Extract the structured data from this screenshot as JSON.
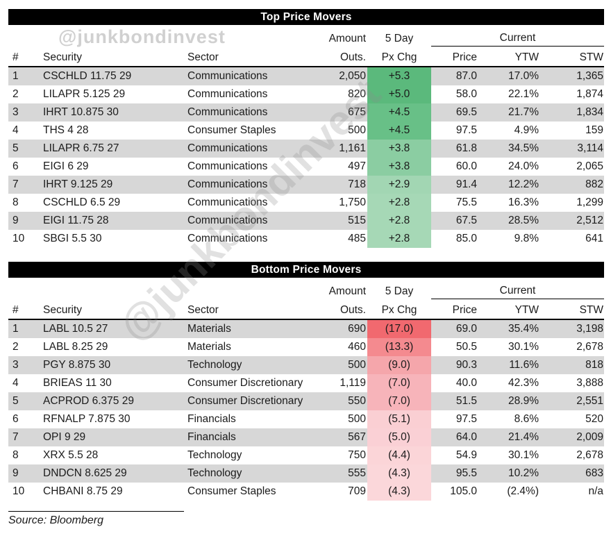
{
  "watermarks": {
    "top_handle": "@junkbondinvest",
    "diagonal_handle": "@junkbondinvest"
  },
  "footer": {
    "source": "Source: Bloomberg"
  },
  "colors": {
    "title_bar_bg": "#000000",
    "title_bar_text": "#ffffff",
    "row_stripe": "#d7d7d7",
    "gain_strong": "#5bb97c",
    "gain_weak": "#a6d8b6",
    "loss_strong": "#f1696f",
    "loss_weak": "#fbd7da"
  },
  "chart_data": [
    {
      "type": "table",
      "title": "Top Price Movers",
      "column_headers": {
        "group_amount": "Amount",
        "group_chg": "5 Day",
        "group_current": "Current",
        "num": "#",
        "security": "Security",
        "sector": "Sector",
        "amount": "Outs.",
        "chg": "Px Chg",
        "price": "Price",
        "ytw": "YTW",
        "stw": "STW"
      },
      "rows": [
        {
          "num": "1",
          "security": "CSCHLD 11.75 29",
          "sector": "Communications",
          "amount": "2,050",
          "chg": "+5.3",
          "chg_bg": "#5bb97c",
          "price": "87.0",
          "ytw": "17.0%",
          "stw": "1,365"
        },
        {
          "num": "2",
          "security": "LILAPR 5.125 29",
          "sector": "Communications",
          "amount": "820",
          "chg": "+5.0",
          "chg_bg": "#5bb97c",
          "price": "58.0",
          "ytw": "22.1%",
          "stw": "1,874"
        },
        {
          "num": "3",
          "security": "IHRT 10.875 30",
          "sector": "Communications",
          "amount": "675",
          "chg": "+4.5",
          "chg_bg": "#68c087",
          "price": "69.5",
          "ytw": "21.7%",
          "stw": "1,834"
        },
        {
          "num": "4",
          "security": "THS 4 28",
          "sector": "Consumer Staples",
          "amount": "500",
          "chg": "+4.5",
          "chg_bg": "#68c087",
          "price": "97.5",
          "ytw": "4.9%",
          "stw": "159"
        },
        {
          "num": "5",
          "security": "LILAPR 6.75 27",
          "sector": "Communications",
          "amount": "1,161",
          "chg": "+3.8",
          "chg_bg": "#8bcda2",
          "price": "61.8",
          "ytw": "34.5%",
          "stw": "3,114"
        },
        {
          "num": "6",
          "security": "EIGI 6 29",
          "sector": "Communications",
          "amount": "497",
          "chg": "+3.8",
          "chg_bg": "#8bcda2",
          "price": "60.0",
          "ytw": "24.0%",
          "stw": "2,065"
        },
        {
          "num": "7",
          "security": "IHRT 9.125 29",
          "sector": "Communications",
          "amount": "718",
          "chg": "+2.9",
          "chg_bg": "#a2d6b3",
          "price": "91.4",
          "ytw": "12.2%",
          "stw": "882"
        },
        {
          "num": "8",
          "security": "CSCHLD 6.5 29",
          "sector": "Communications",
          "amount": "1,750",
          "chg": "+2.8",
          "chg_bg": "#a6d8b6",
          "price": "75.5",
          "ytw": "16.3%",
          "stw": "1,299"
        },
        {
          "num": "9",
          "security": "EIGI 11.75 28",
          "sector": "Communications",
          "amount": "515",
          "chg": "+2.8",
          "chg_bg": "#a6d8b6",
          "price": "67.5",
          "ytw": "28.5%",
          "stw": "2,512"
        },
        {
          "num": "10",
          "security": "SBGI 5.5 30",
          "sector": "Communications",
          "amount": "485",
          "chg": "+2.8",
          "chg_bg": "#a6d8b6",
          "price": "85.0",
          "ytw": "9.8%",
          "stw": "641"
        }
      ]
    },
    {
      "type": "table",
      "title": "Bottom Price Movers",
      "column_headers": {
        "group_amount": "Amount",
        "group_chg": "5 Day",
        "group_current": "Current",
        "num": "#",
        "security": "Security",
        "sector": "Sector",
        "amount": "Outs.",
        "chg": "Px Chg",
        "price": "Price",
        "ytw": "YTW",
        "stw": "STW"
      },
      "rows": [
        {
          "num": "1",
          "security": "LABL 10.5 27",
          "sector": "Materials",
          "amount": "690",
          "chg": "(17.0)",
          "chg_bg": "#f1696f",
          "price": "69.0",
          "ytw": "35.4%",
          "stw": "3,198"
        },
        {
          "num": "2",
          "security": "LABL 8.25 29",
          "sector": "Materials",
          "amount": "460",
          "chg": "(13.3)",
          "chg_bg": "#f48a8f",
          "price": "50.5",
          "ytw": "30.1%",
          "stw": "2,678"
        },
        {
          "num": "3",
          "security": "PGY 8.875 30",
          "sector": "Technology",
          "amount": "500",
          "chg": "(9.0)",
          "chg_bg": "#f5a6ab",
          "price": "90.3",
          "ytw": "11.6%",
          "stw": "818"
        },
        {
          "num": "4",
          "security": "BRIEAS 11 30",
          "sector": "Consumer Discretionary",
          "amount": "1,119",
          "chg": "(7.0)",
          "chg_bg": "#f7b4ba",
          "price": "40.0",
          "ytw": "42.3%",
          "stw": "3,888"
        },
        {
          "num": "5",
          "security": "ACPROD 6.375 29",
          "sector": "Consumer Discretionary",
          "amount": "550",
          "chg": "(7.0)",
          "chg_bg": "#f7b4ba",
          "price": "51.5",
          "ytw": "28.9%",
          "stw": "2,551"
        },
        {
          "num": "6",
          "security": "RFNALP 7.875 30",
          "sector": "Financials",
          "amount": "500",
          "chg": "(5.1)",
          "chg_bg": "#facfd3",
          "price": "97.5",
          "ytw": "8.6%",
          "stw": "520"
        },
        {
          "num": "7",
          "security": "OPI 9 29",
          "sector": "Financials",
          "amount": "567",
          "chg": "(5.0)",
          "chg_bg": "#fad0d5",
          "price": "64.0",
          "ytw": "21.4%",
          "stw": "2,009"
        },
        {
          "num": "8",
          "security": "XRX 5.5 28",
          "sector": "Technology",
          "amount": "750",
          "chg": "(4.4)",
          "chg_bg": "#fbd5d8",
          "price": "54.9",
          "ytw": "30.1%",
          "stw": "2,678"
        },
        {
          "num": "9",
          "security": "DNDCN 8.625 29",
          "sector": "Technology",
          "amount": "555",
          "chg": "(4.3)",
          "chg_bg": "#fbd7da",
          "price": "95.5",
          "ytw": "10.2%",
          "stw": "683"
        },
        {
          "num": "10",
          "security": "CHBANI 8.75 29",
          "sector": "Consumer Staples",
          "amount": "709",
          "chg": "(4.3)",
          "chg_bg": "#fbd7da",
          "price": "105.0",
          "ytw": "(2.4%)",
          "stw": "n/a"
        }
      ]
    }
  ]
}
